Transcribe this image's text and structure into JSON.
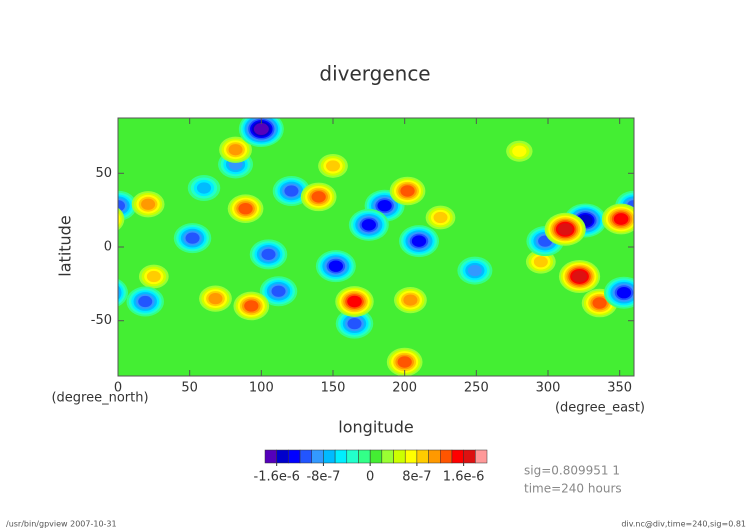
{
  "chart_data": {
    "type": "contour_map",
    "title": "divergence",
    "x_label": "longitude",
    "y_label": "latitude",
    "x_units": "(degree_east)",
    "y_units": "(degree_north)",
    "xlim": [
      0,
      360
    ],
    "ylim": [
      -87.5,
      87.5
    ],
    "xticks": [
      0,
      50,
      100,
      150,
      200,
      250,
      300,
      350
    ],
    "yticks": [
      -50,
      0,
      50
    ],
    "background_color": "#44ee33",
    "features": [
      {
        "lon": 100,
        "lat": 80,
        "value": -1.8e-06
      },
      {
        "lon": 82,
        "lat": 66,
        "value": 1.2e-06
      },
      {
        "lon": 82,
        "lat": 56,
        "value": -1e-06
      },
      {
        "lon": 200,
        "lat": -78,
        "value": 1.4e-06
      },
      {
        "lon": 280,
        "lat": 65,
        "value": 8e-07
      },
      {
        "lon": 0,
        "lat": 28,
        "value": -1.2e-06
      },
      {
        "lon": 21,
        "lat": 29,
        "value": 1.2e-06
      },
      {
        "lon": 121,
        "lat": 38,
        "value": -1.2e-06
      },
      {
        "lon": 140,
        "lat": 34,
        "value": 1.4e-06
      },
      {
        "lon": 89,
        "lat": 26,
        "value": 1.4e-06
      },
      {
        "lon": 186,
        "lat": 28,
        "value": -1.4e-06
      },
      {
        "lon": 202,
        "lat": 38,
        "value": 1.4e-06
      },
      {
        "lon": 175,
        "lat": 15,
        "value": -1.4e-06
      },
      {
        "lon": 210,
        "lat": 4,
        "value": -1.4e-06
      },
      {
        "lon": 225,
        "lat": 20,
        "value": 1e-06
      },
      {
        "lon": 312,
        "lat": 12,
        "value": 1.8e-06
      },
      {
        "lon": 326,
        "lat": 18,
        "value": -1.6e-06
      },
      {
        "lon": 351,
        "lat": 19,
        "value": 1.6e-06
      },
      {
        "lon": 298,
        "lat": 4,
        "value": -1.2e-06
      },
      {
        "lon": 322,
        "lat": -20,
        "value": 1.8e-06
      },
      {
        "lon": 336,
        "lat": -38,
        "value": 1.4e-06
      },
      {
        "lon": 353,
        "lat": -31,
        "value": -1.4e-06
      },
      {
        "lon": 295,
        "lat": -10,
        "value": 1e-06
      },
      {
        "lon": 249,
        "lat": -16,
        "value": -1e-06
      },
      {
        "lon": 52,
        "lat": 6,
        "value": -1.2e-06
      },
      {
        "lon": 105,
        "lat": -5,
        "value": -1.2e-06
      },
      {
        "lon": 25,
        "lat": -20,
        "value": 1e-06
      },
      {
        "lon": 19,
        "lat": -37,
        "value": -1.2e-06
      },
      {
        "lon": 68,
        "lat": -35,
        "value": 1.2e-06
      },
      {
        "lon": 93,
        "lat": -40,
        "value": 1.4e-06
      },
      {
        "lon": 112,
        "lat": -30,
        "value": -1.2e-06
      },
      {
        "lon": 152,
        "lat": -13,
        "value": -1.4e-06
      },
      {
        "lon": 165,
        "lat": -37,
        "value": 1.6e-06
      },
      {
        "lon": 165,
        "lat": -52,
        "value": -1.2e-06
      },
      {
        "lon": 204,
        "lat": -36,
        "value": 1.2e-06
      },
      {
        "lon": 150,
        "lat": 55,
        "value": 1e-06
      },
      {
        "lon": 60,
        "lat": 40,
        "value": -8e-07
      }
    ],
    "colorbar": {
      "levels": [
        -1.8e-06,
        -1.6e-06,
        -1.4e-06,
        -1.2e-06,
        -1e-06,
        -8e-07,
        -6e-07,
        -4e-07,
        -2e-07,
        0,
        2e-07,
        4e-07,
        6e-07,
        8e-07,
        1e-06,
        1.2e-06,
        1.4e-06,
        1.6e-06,
        1.8e-06,
        2e-06
      ],
      "colors": [
        "#5500bb",
        "#0000cc",
        "#0000ff",
        "#2255ff",
        "#3399ff",
        "#00bbff",
        "#00eeff",
        "#22ffcc",
        "#33ff88",
        "#44ee33",
        "#99ff33",
        "#ccff00",
        "#ffff00",
        "#ffcc00",
        "#ff9900",
        "#ff5500",
        "#ff0000",
        "#dd1111",
        "#ff9999"
      ],
      "ticks": [
        {
          "value": -1.6e-06,
          "label": "-1.6e-6"
        },
        {
          "value": -8e-07,
          "label": "-8e-7"
        },
        {
          "value": 0,
          "label": "0"
        },
        {
          "value": 8e-07,
          "label": "8e-7"
        },
        {
          "value": 1.6e-06,
          "label": "1.6e-6"
        }
      ]
    },
    "info_lines": [
      "sig=0.809951 1",
      "time=240 hours"
    ],
    "footer_left": "/usr/bin/gpview  2007-10-31",
    "footer_right": "div.nc@div,time=240,sig=0.81"
  }
}
